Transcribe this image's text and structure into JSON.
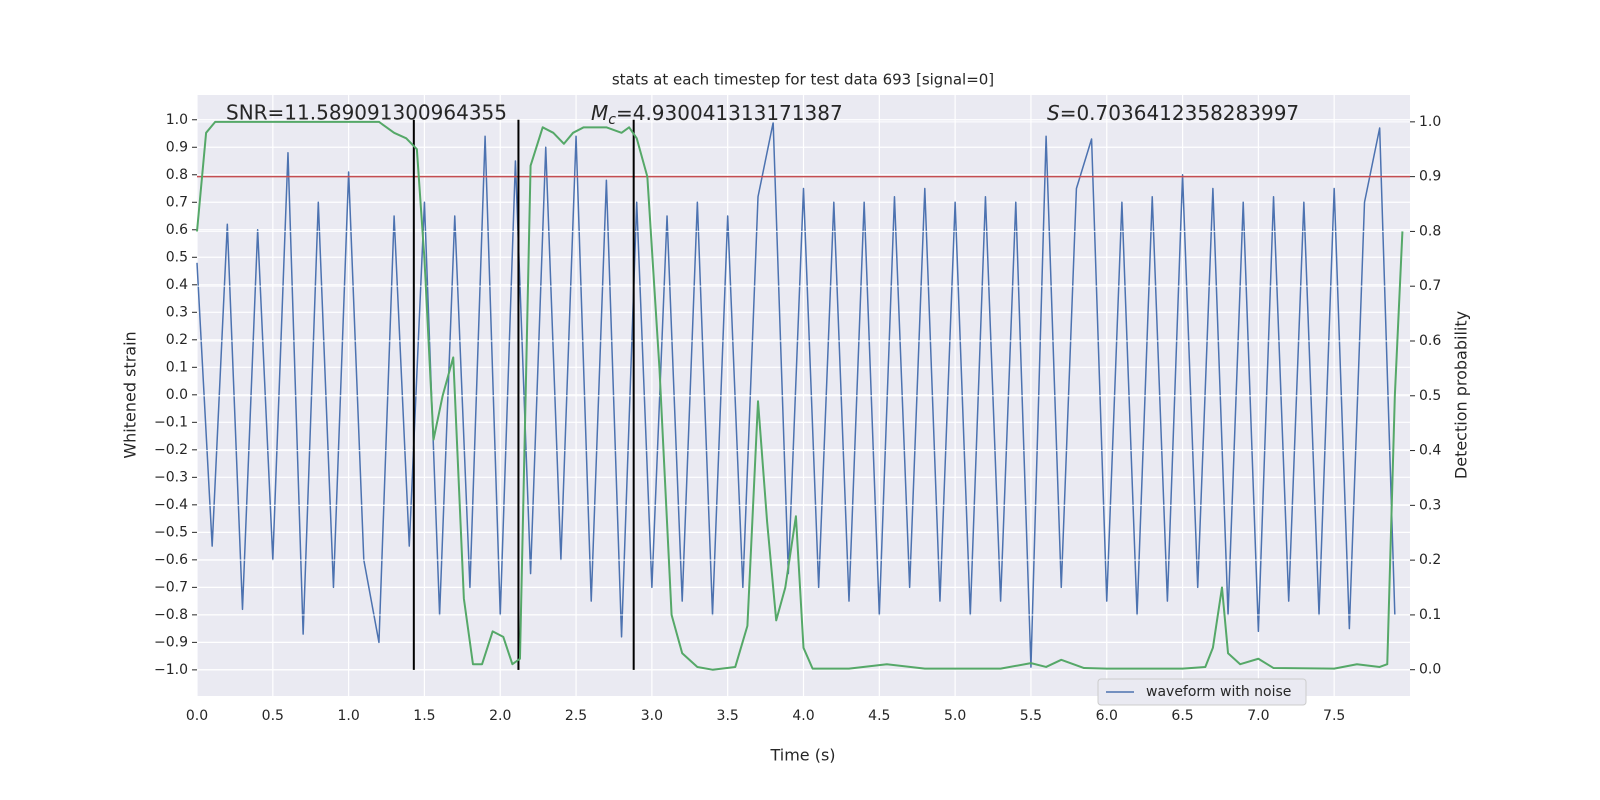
{
  "chart_data": {
    "type": "line",
    "title": "stats at each timestep for test data 693 [signal=0]",
    "xlabel": "Time (s)",
    "ylabel": "Whitened strain",
    "y2label": "Detection probability",
    "annotations": {
      "snr": "SNR=11.589091300964355",
      "mc": {
        "symbol": "M",
        "subscript": "c",
        "text": "=4.930041313171387"
      },
      "s": {
        "symbol": "S",
        "text": "=0.7036412358283997"
      }
    },
    "xlim": [
      0,
      8
    ],
    "ylim": [
      -1.095,
      1.09
    ],
    "y2lim": [
      -0.048,
      1.049
    ],
    "xticks": [
      {
        "value": 0,
        "label": "0.0"
      },
      {
        "value": 0.5,
        "label": "0.5"
      },
      {
        "value": 1,
        "label": "1.0"
      },
      {
        "value": 1.5,
        "label": "1.5"
      },
      {
        "value": 2,
        "label": "2.0"
      },
      {
        "value": 2.5,
        "label": "2.5"
      },
      {
        "value": 3,
        "label": "3.0"
      },
      {
        "value": 3.5,
        "label": "3.5"
      },
      {
        "value": 4,
        "label": "4.0"
      },
      {
        "value": 4.5,
        "label": "4.5"
      },
      {
        "value": 5,
        "label": "5.0"
      },
      {
        "value": 5.5,
        "label": "5.5"
      },
      {
        "value": 6,
        "label": "6.0"
      },
      {
        "value": 6.5,
        "label": "6.5"
      },
      {
        "value": 7,
        "label": "7.0"
      },
      {
        "value": 7.5,
        "label": "7.5"
      }
    ],
    "yticks": [
      {
        "value": -1,
        "label": "−1.0"
      },
      {
        "value": -0.9,
        "label": "−0.9"
      },
      {
        "value": -0.8,
        "label": "−0.8"
      },
      {
        "value": -0.7,
        "label": "−0.7"
      },
      {
        "value": -0.6,
        "label": "−0.6"
      },
      {
        "value": -0.5,
        "label": "−0.5"
      },
      {
        "value": -0.4,
        "label": "−0.4"
      },
      {
        "value": -0.3,
        "label": "−0.3"
      },
      {
        "value": -0.2,
        "label": "−0.2"
      },
      {
        "value": -0.1,
        "label": "−0.1"
      },
      {
        "value": 0,
        "label": "0.0"
      },
      {
        "value": 0.1,
        "label": "0.1"
      },
      {
        "value": 0.2,
        "label": "0.2"
      },
      {
        "value": 0.3,
        "label": "0.3"
      },
      {
        "value": 0.4,
        "label": "0.4"
      },
      {
        "value": 0.5,
        "label": "0.5"
      },
      {
        "value": 0.6,
        "label": "0.6"
      },
      {
        "value": 0.7,
        "label": "0.7"
      },
      {
        "value": 0.8,
        "label": "0.8"
      },
      {
        "value": 0.9,
        "label": "0.9"
      },
      {
        "value": 1,
        "label": "1.0"
      }
    ],
    "y2ticks": [
      {
        "value": 0,
        "label": "0.0"
      },
      {
        "value": 0.1,
        "label": "0.1"
      },
      {
        "value": 0.2,
        "label": "0.2"
      },
      {
        "value": 0.3,
        "label": "0.3"
      },
      {
        "value": 0.4,
        "label": "0.4"
      },
      {
        "value": 0.5,
        "label": "0.5"
      },
      {
        "value": 0.6,
        "label": "0.6"
      },
      {
        "value": 0.7,
        "label": "0.7"
      },
      {
        "value": 0.8,
        "label": "0.8"
      },
      {
        "value": 0.9,
        "label": "0.9"
      },
      {
        "value": 1,
        "label": "1.0"
      }
    ],
    "grid": true,
    "legend": "lower right",
    "series": [
      {
        "name": "waveform with noise",
        "color": "#4c72b0",
        "x": [
          0,
          0.1,
          0.2,
          0.3,
          0.4,
          0.5,
          0.6,
          0.7,
          0.8,
          0.9,
          1,
          1.1,
          1.2,
          1.3,
          1.4,
          1.5,
          1.6,
          1.7,
          1.8,
          1.9,
          2,
          2.1,
          2.2,
          2.3,
          2.4,
          2.5,
          2.6,
          2.7,
          2.8,
          2.9,
          3,
          3.1,
          3.2,
          3.3,
          3.4,
          3.5,
          3.6,
          3.7,
          3.8,
          3.9,
          4,
          4.1,
          4.2,
          4.3,
          4.4,
          4.5,
          4.6,
          4.7,
          4.8,
          4.9,
          5,
          5.1,
          5.2,
          5.3,
          5.4,
          5.5,
          5.6,
          5.7,
          5.8,
          5.9,
          6,
          6.1,
          6.2,
          6.3,
          6.4,
          6.5,
          6.6,
          6.7,
          6.8,
          6.9,
          7,
          7.1,
          7.2,
          7.3,
          7.4,
          7.5,
          7.6,
          7.7,
          7.8,
          7.9
        ],
        "values": [
          0.48,
          -0.55,
          0.62,
          -0.78,
          0.6,
          -0.6,
          0.88,
          -0.87,
          0.7,
          -0.7,
          0.81,
          -0.6,
          -0.9,
          0.65,
          -0.55,
          0.7,
          -0.8,
          0.65,
          -0.7,
          0.94,
          -0.8,
          0.85,
          -0.65,
          0.9,
          -0.6,
          0.94,
          -0.75,
          0.78,
          -0.88,
          0.7,
          -0.7,
          0.65,
          -0.75,
          0.7,
          -0.8,
          0.65,
          -0.7,
          0.72,
          0.99,
          -0.65,
          0.75,
          -0.7,
          0.7,
          -0.75,
          0.7,
          -0.8,
          0.72,
          -0.7,
          0.75,
          -0.75,
          0.7,
          -0.8,
          0.72,
          -0.75,
          0.7,
          -0.99,
          0.94,
          -0.7,
          0.75,
          0.93,
          -0.75,
          0.7,
          -0.8,
          0.72,
          -0.75,
          0.8,
          -0.7,
          0.75,
          -0.8,
          0.7,
          -0.86,
          0.72,
          -0.75,
          0.7,
          -0.8,
          0.75,
          -0.85,
          0.7,
          0.97,
          -0.8
        ]
      },
      {
        "color": "#55a868",
        "axis": "y2",
        "x": [
          0,
          0.06,
          0.12,
          0.5,
          1,
          1.2,
          1.3,
          1.38,
          1.45,
          1.5,
          1.56,
          1.62,
          1.69,
          1.76,
          1.82,
          1.88,
          1.95,
          2.02,
          2.08,
          2.13,
          2.2,
          2.28,
          2.35,
          2.42,
          2.48,
          2.55,
          2.7,
          2.8,
          2.85,
          2.9,
          2.97,
          3.05,
          3.13,
          3.2,
          3.3,
          3.4,
          3.55,
          3.63,
          3.7,
          3.76,
          3.82,
          3.88,
          3.95,
          4,
          4.06,
          4.3,
          4.55,
          4.8,
          5,
          5.3,
          5.5,
          5.6,
          5.7,
          5.85,
          6,
          6.5,
          6.65,
          6.7,
          6.76,
          6.8,
          6.88,
          7,
          7.1,
          7.5,
          7.65,
          7.8,
          7.85,
          7.9,
          7.95
        ],
        "values": [
          0.8,
          0.98,
          1,
          1,
          1,
          1,
          0.98,
          0.97,
          0.95,
          0.75,
          0.42,
          0.5,
          0.57,
          0.13,
          0.01,
          0.01,
          0.07,
          0.06,
          0.01,
          0.02,
          0.92,
          0.99,
          0.98,
          0.96,
          0.98,
          0.99,
          0.99,
          0.98,
          0.99,
          0.97,
          0.9,
          0.55,
          0.1,
          0.03,
          0.005,
          0,
          0.005,
          0.08,
          0.49,
          0.27,
          0.09,
          0.15,
          0.28,
          0.04,
          0.002,
          0.002,
          0.01,
          0.002,
          0.002,
          0.002,
          0.012,
          0.005,
          0.018,
          0.003,
          0.002,
          0.002,
          0.005,
          0.04,
          0.15,
          0.03,
          0.01,
          0.02,
          0.003,
          0.002,
          0.01,
          0.005,
          0.01,
          0.5,
          0.8
        ]
      }
    ],
    "threshold": {
      "value": 0.9,
      "axis": "y2",
      "color": "#c44e52"
    },
    "markers": {
      "x": [
        1.43,
        2.12,
        2.88
      ],
      "y_range": [
        -1,
        1
      ],
      "color": "#000000"
    }
  }
}
